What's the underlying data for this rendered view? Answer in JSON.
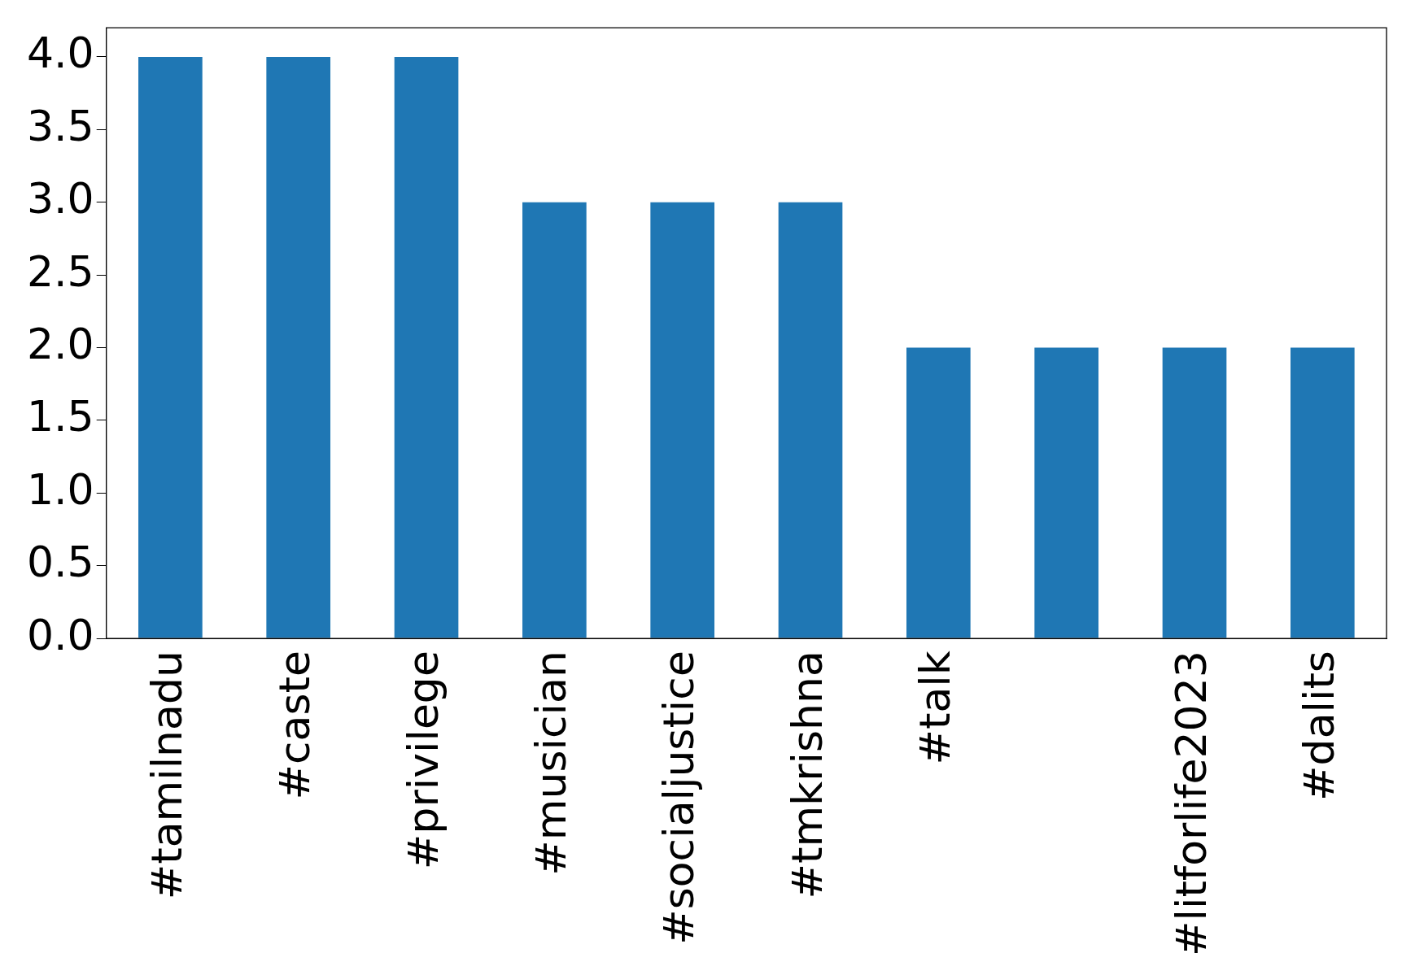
{
  "chart_data": {
    "type": "bar",
    "categories": [
      "#tamilnadu",
      "#caste",
      "#privilege",
      "#musician",
      "#socialjustice",
      "#tmkrishna",
      "#talk",
      null,
      "#litforlife2023",
      "#dalits"
    ],
    "values": [
      4,
      4,
      4,
      3,
      3,
      3,
      2,
      2,
      2,
      2
    ],
    "color": "#1f77b4",
    "ylim": [
      0,
      4.2
    ],
    "yticks": [
      {
        "value": 0,
        "label": "0.0"
      },
      {
        "value": 0.5,
        "label": "0.5"
      },
      {
        "value": 1,
        "label": "1.0"
      },
      {
        "value": 1.5,
        "label": "1.5"
      },
      {
        "value": 2,
        "label": "2.0"
      },
      {
        "value": 2.5,
        "label": "2.5"
      },
      {
        "value": 3,
        "label": "3.0"
      },
      {
        "value": 3.5,
        "label": "3.5"
      },
      {
        "value": 4,
        "label": "4.0"
      }
    ],
    "grid": false,
    "legend": false
  }
}
